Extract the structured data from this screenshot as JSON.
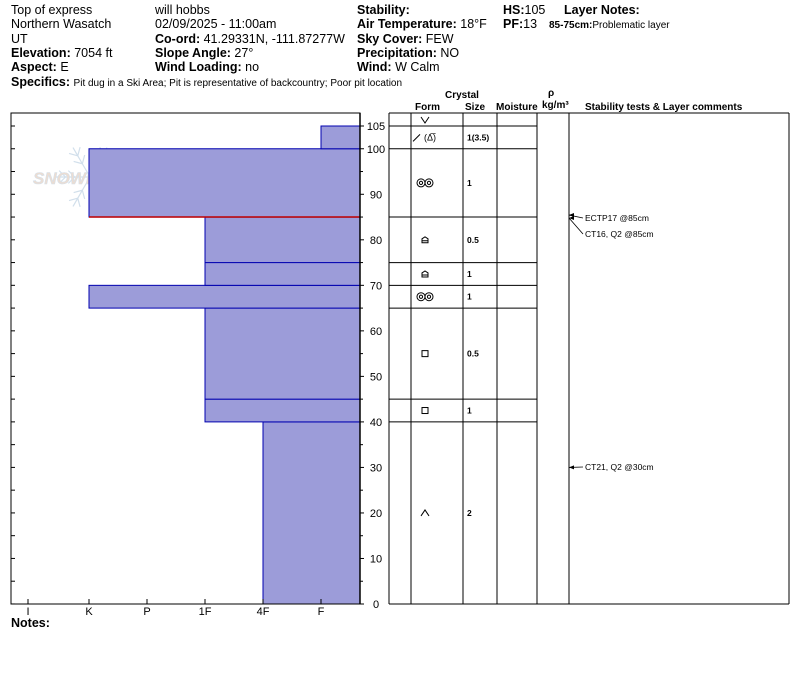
{
  "header": {
    "location": "Top of express",
    "region": "Northern Wasatch",
    "state": "UT",
    "elevation_label": "Elevation:",
    "elevation": "7054 ft",
    "aspect_label": "Aspect:",
    "aspect": "E",
    "observer": "will hobbs",
    "datetime": "02/09/2025 - 11:00am",
    "coord_label": "Co-ord:",
    "coord": "41.29331N, -111.87277W",
    "slope_label": "Slope Angle:",
    "slope": "27°",
    "wind_loading_label": "Wind Loading:",
    "wind_loading": "no",
    "stability_label": "Stability:",
    "stability": "",
    "air_temp_label": "Air Temperature:",
    "air_temp": "18°F",
    "sky_label": "Sky Cover:",
    "sky": "FEW",
    "precip_label": "Precipitation:",
    "precip": "NO",
    "wind_label": "Wind:",
    "wind": "W Calm",
    "hs_label": "HS:",
    "hs": "105",
    "pf_label": "PF:",
    "pf": "13",
    "layer_notes_label": "Layer Notes:",
    "layer_notes": "85-75cm:",
    "layer_notes_text": "Problematic layer",
    "specifics_label": "Specifics:",
    "specifics": "Pit dug in a Ski Area; Pit is representative of backcountry; Poor pit location"
  },
  "watermark": "SNOWPILOT",
  "notes_label": "Notes:",
  "columns": {
    "crystal": "Crystal",
    "form": "Form",
    "size": "Size",
    "moisture": "Moisture",
    "rho": "ρ",
    "density_unit": "kg/m³",
    "stability": "Stability tests & Layer comments"
  },
  "hardness_ticks": [
    "I",
    "K",
    "P",
    "1F",
    "4F",
    "F"
  ],
  "depth_ticks": [
    "0",
    "10",
    "20",
    "30",
    "40",
    "50",
    "60",
    "70",
    "80",
    "90",
    "100",
    "105"
  ],
  "chart_data": {
    "type": "snow-profile",
    "hs_cm": 105,
    "y_axis": "height (cm)",
    "x_axis": "hand hardness",
    "layers": [
      {
        "bottom": 0,
        "top": 40,
        "hardness": "4F",
        "form": "facets-rounding",
        "size": "2"
      },
      {
        "bottom": 40,
        "top": 45,
        "hardness": "1F",
        "form": "faceted",
        "size": "1"
      },
      {
        "bottom": 45,
        "top": 65,
        "hardness": "1F",
        "form": "faceted",
        "size": "0.5"
      },
      {
        "bottom": 65,
        "top": 70,
        "hardness": "K",
        "form": "rounded-grains",
        "size": "1"
      },
      {
        "bottom": 70,
        "top": 75,
        "hardness": "1F",
        "form": "depth-hoar",
        "size": "1"
      },
      {
        "bottom": 75,
        "top": 85,
        "hardness": "1F",
        "form": "depth-hoar",
        "size": "0.5"
      },
      {
        "bottom": 85,
        "top": 100,
        "hardness": "K",
        "form": "rounded-grains",
        "size": "1"
      },
      {
        "bottom": 100,
        "top": 105,
        "hardness": "F",
        "form": "decomposing/precip",
        "size": "1(3.5)"
      }
    ],
    "surface_form": "surface-hoar",
    "problem_interface_cm": 85,
    "tests": [
      {
        "label": "ECTP17 @85cm",
        "depth": 85
      },
      {
        "label": "CT16, Q2 @85cm",
        "depth": 85
      },
      {
        "label": "CT21, Q2 @30cm",
        "depth": 30
      }
    ]
  }
}
